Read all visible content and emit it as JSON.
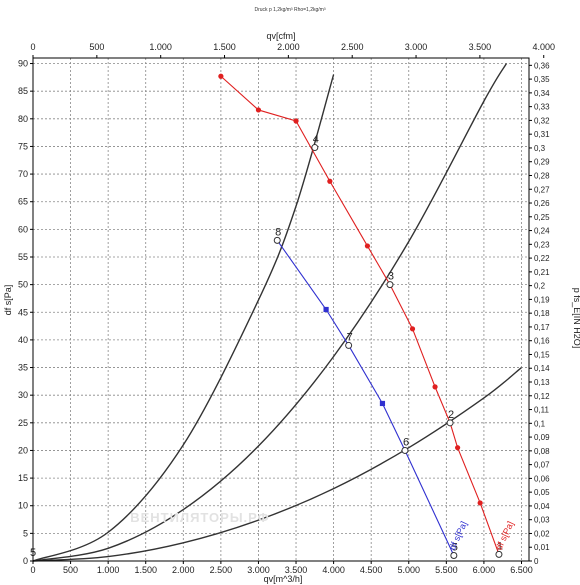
{
  "chart_data": {
    "type": "line",
    "title": "Druck p 1,2kg/m³ Rho=1,2kg/m³",
    "xlabel_bottom": "qv[m^3/h]",
    "xlabel_top": "qv[cfm]",
    "ylabel_left": "df s[Pa]",
    "ylabel_right": "p fs_E[IN H2O]",
    "xlim": [
      0,
      6600
    ],
    "ylim": [
      0,
      91
    ],
    "x_ticks": [
      "0",
      "500",
      "1.000",
      "1.500",
      "2.000",
      "2.500",
      "3.000",
      "3.500",
      "4.000",
      "4.500",
      "5.000",
      "5.500",
      "6.000",
      "6.500"
    ],
    "x_tick_values": [
      0,
      500,
      1000,
      1500,
      2000,
      2500,
      3000,
      3500,
      4000,
      4500,
      5000,
      5500,
      6000,
      6500
    ],
    "x_top_ticks": [
      "0",
      "500",
      "1.000",
      "1.500",
      "2.000",
      "2.500",
      "3.000",
      "3.500",
      "4.000"
    ],
    "x_top_tick_values": [
      0,
      500,
      1000,
      1500,
      2000,
      2500,
      3000,
      3500,
      4000
    ],
    "y_ticks": [
      "0",
      "5",
      "10",
      "15",
      "20",
      "25",
      "30",
      "35",
      "40",
      "45",
      "50",
      "55",
      "60",
      "65",
      "70",
      "75",
      "80",
      "85",
      "90"
    ],
    "y_tick_values": [
      0,
      5,
      10,
      15,
      20,
      25,
      30,
      35,
      40,
      45,
      50,
      55,
      60,
      65,
      70,
      75,
      80,
      85,
      90
    ],
    "y_right_ticks": [
      "0",
      "0,01",
      "0,02",
      "0,03",
      "0,04",
      "0,05",
      "0,06",
      "0,07",
      "0,08",
      "0,09",
      "0,1",
      "0,11",
      "0,12",
      "0,13",
      "0,14",
      "0,15",
      "0,16",
      "0,17",
      "0,18",
      "0,19",
      "0,2",
      "0,21",
      "0,22",
      "0,23",
      "0,24",
      "0,25",
      "0,26",
      "0,27",
      "0,28",
      "0,29",
      "0,3",
      "0,31",
      "0,32",
      "0,33",
      "0,34",
      "0,35",
      "0,36"
    ],
    "grid": true,
    "series": [
      {
        "name": "df s[Pa]",
        "color": "#e02020",
        "marker": "circle",
        "x": [
          2500,
          3000,
          3500,
          3950,
          4450,
          4750,
          5050,
          5350,
          5550,
          5650,
          5950,
          6200
        ],
        "y": [
          87.7,
          81.6,
          79.6,
          68.7,
          57.0,
          50.0,
          42.0,
          31.5,
          25.0,
          20.5,
          10.5,
          1.2
        ]
      },
      {
        "name": "df s[Pa]",
        "color": "#3030d0",
        "marker": "square",
        "x": [
          3250,
          3900,
          4200,
          4650,
          4950,
          5600
        ],
        "y": [
          58.0,
          45.5,
          39.0,
          28.5,
          20.0,
          1.0
        ]
      },
      {
        "name": "",
        "color": "#333333",
        "marker": "none",
        "x": [
          0,
          1000,
          2000,
          3000,
          3500,
          4000
        ],
        "y": [
          0,
          5.2,
          21.0,
          47.2,
          64.2,
          88.0
        ]
      },
      {
        "name": "",
        "color": "#333333",
        "marker": "none",
        "x": [
          0,
          1000,
          2000,
          3000,
          4000,
          5000,
          6000,
          6300
        ],
        "y": [
          0,
          2.3,
          9.3,
          20.8,
          37.0,
          57.8,
          83.2,
          90.0
        ]
      },
      {
        "name": "",
        "color": "#333333",
        "marker": "none",
        "x": [
          0,
          1000,
          2000,
          3000,
          4000,
          5000,
          6000,
          6500
        ],
        "y": [
          0,
          0.8,
          3.3,
          7.4,
          13.1,
          20.5,
          29.5,
          35.0
        ]
      }
    ],
    "point_labels": [
      {
        "text": "1",
        "x": 6200,
        "y": 1.2
      },
      {
        "text": "2",
        "x": 5550,
        "y": 25.0
      },
      {
        "text": "3",
        "x": 4750,
        "y": 50.0
      },
      {
        "text": "4",
        "x": 3750,
        "y": 74.8
      },
      {
        "text": "5",
        "x": 5600,
        "y": 1.0
      },
      {
        "text": "6",
        "x": 4950,
        "y": 20.0
      },
      {
        "text": "7",
        "x": 4200,
        "y": 39.0
      },
      {
        "text": "8",
        "x": 3250,
        "y": 58.0
      },
      {
        "text": "5",
        "x": 0,
        "y": 0
      }
    ],
    "series_end_labels": [
      {
        "text": "df s[Pa]",
        "color": "#e02020",
        "x": 6200,
        "y": 1.5
      },
      {
        "text": "df s[Pa]",
        "color": "#3030d0",
        "x": 5580,
        "y": 1.5
      }
    ],
    "watermark": "ВЕНТИЛЯТОРЫ.РФ"
  }
}
